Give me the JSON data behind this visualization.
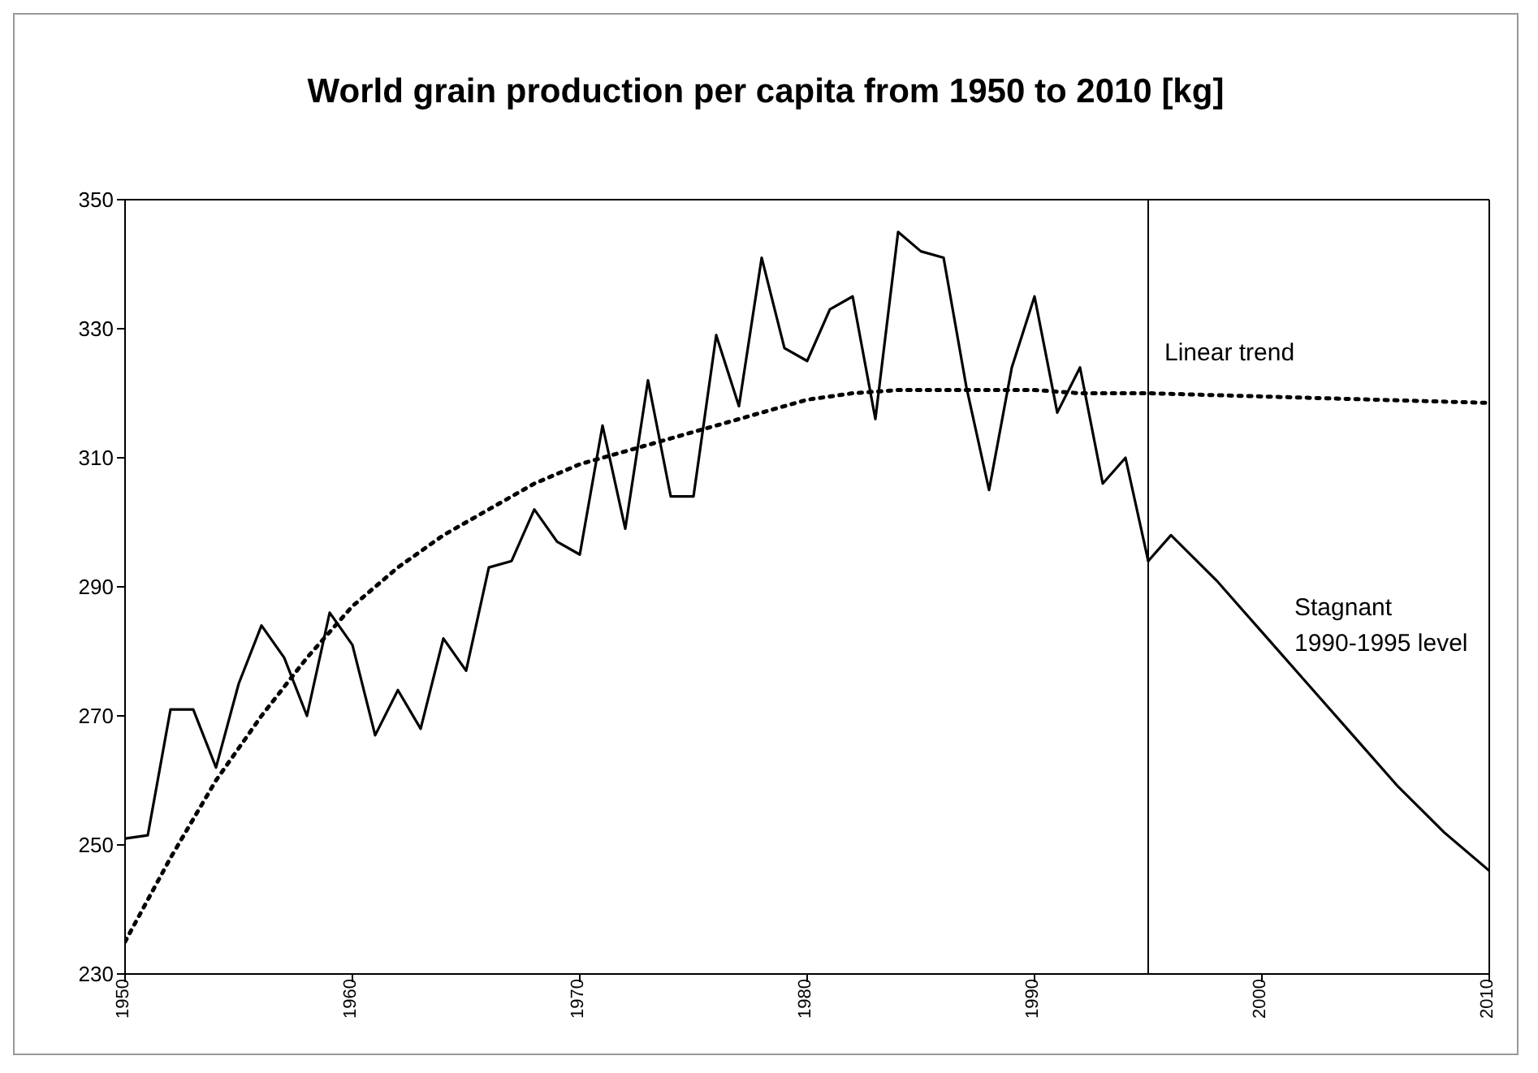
{
  "chart_data": {
    "type": "line",
    "title": "World grain production per capita from 1950 to 2010 [kg]",
    "xlim": [
      1950,
      2010
    ],
    "xticks": [
      1950,
      1960,
      1970,
      1980,
      1990,
      2000,
      2010
    ],
    "ylim": [
      230,
      350
    ],
    "yticks": [
      230,
      250,
      270,
      290,
      310,
      330,
      350
    ],
    "grid": false,
    "legend": false,
    "marker": "none",
    "series": [
      {
        "color": "#000000",
        "line_style": "solid",
        "x": [
          1950,
          1951,
          1952,
          1953,
          1954,
          1955,
          1956,
          1957,
          1958,
          1959,
          1960,
          1961,
          1962,
          1963,
          1964,
          1965,
          1966,
          1967,
          1968,
          1969,
          1970,
          1971,
          1972,
          1973,
          1974,
          1975,
          1976,
          1977,
          1978,
          1979,
          1980,
          1981,
          1982,
          1983,
          1984,
          1985,
          1986,
          1987,
          1988,
          1989,
          1990,
          1991,
          1992,
          1993,
          1994,
          1995
        ],
        "values": [
          251,
          251.5,
          271,
          271,
          262,
          275,
          284,
          279,
          270,
          286,
          281,
          267,
          274,
          268,
          282,
          277,
          293,
          294,
          302,
          297,
          295,
          315,
          299,
          322,
          304,
          304,
          329,
          318,
          341,
          327,
          325,
          333,
          335,
          316,
          345,
          342,
          341,
          321,
          305,
          324,
          335,
          317,
          324,
          306,
          310,
          294
        ]
      },
      {
        "name": "Stagnant 1990-1995 level",
        "color": "#000000",
        "line_style": "solid",
        "x": [
          1995,
          1996,
          1998,
          2000,
          2002,
          2004,
          2006,
          2008,
          2010
        ],
        "values": [
          294,
          298,
          291,
          283,
          275,
          267,
          259,
          252,
          246
        ]
      },
      {
        "name": "Linear trend",
        "color": "#000000",
        "line_style": "dotted",
        "x": [
          1950,
          1952,
          1954,
          1956,
          1958,
          1960,
          1962,
          1964,
          1966,
          1968,
          1970,
          1972,
          1974,
          1976,
          1978,
          1980,
          1982,
          1984,
          1986,
          1988,
          1990,
          1992,
          1995,
          2000,
          2005,
          2010
        ],
        "values": [
          235,
          248,
          260,
          270,
          279,
          287,
          293,
          298,
          302,
          306,
          309,
          311,
          313,
          315,
          317,
          319,
          320,
          320.5,
          320.5,
          320.5,
          320.5,
          320,
          320,
          319.5,
          319,
          318.5
        ]
      }
    ],
    "ref_lines": [
      {
        "axis": "x",
        "value": 1995,
        "color": "#000000",
        "line_style": "solid"
      }
    ]
  }
}
